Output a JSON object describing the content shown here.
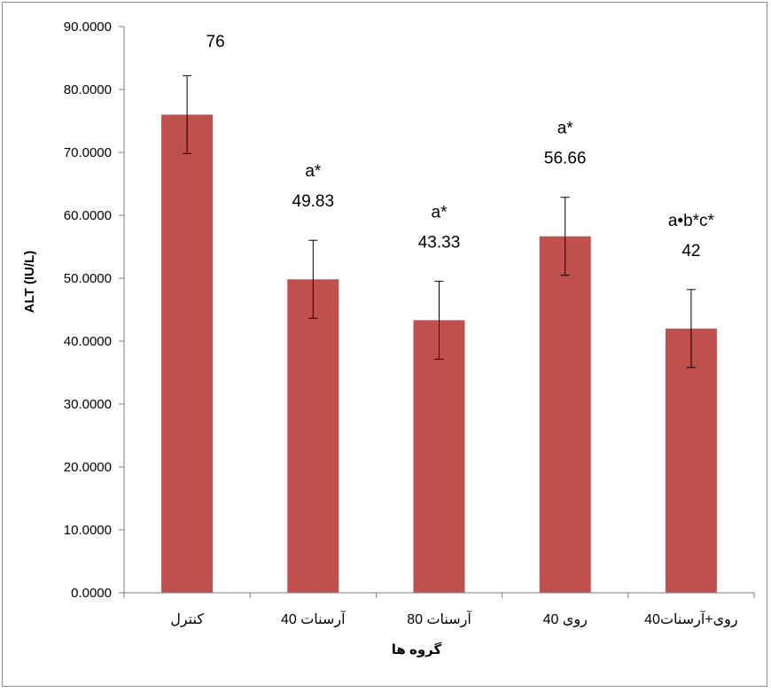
{
  "chart_data": {
    "type": "bar",
    "xlabel": "گروه ها",
    "ylabel": "ALT (IU/L)",
    "ylim": [
      0,
      90
    ],
    "yticks": [
      "0.0000",
      "10.0000",
      "20.0000",
      "30.0000",
      "40.0000",
      "50.0000",
      "60.0000",
      "70.0000",
      "80.0000",
      "90.0000"
    ],
    "categories": [
      "کنترل",
      "آرسنات 40",
      "آرسنات 80",
      "روی 40",
      "روی+آرسنات40"
    ],
    "values": [
      76,
      49.83,
      43.33,
      56.66,
      42
    ],
    "errors": [
      6.2,
      6.2,
      6.2,
      6.2,
      6.2
    ],
    "annotations": [
      {
        "value": "76",
        "sig": ""
      },
      {
        "value": "49.83",
        "sig": "a*"
      },
      {
        "value": "43.33",
        "sig": "a*"
      },
      {
        "value": "56.66",
        "sig": "a*"
      },
      {
        "value": "42",
        "sig": "a•b*c*"
      }
    ],
    "bar_color": "#c0504d",
    "grid": false,
    "legend": "none"
  }
}
